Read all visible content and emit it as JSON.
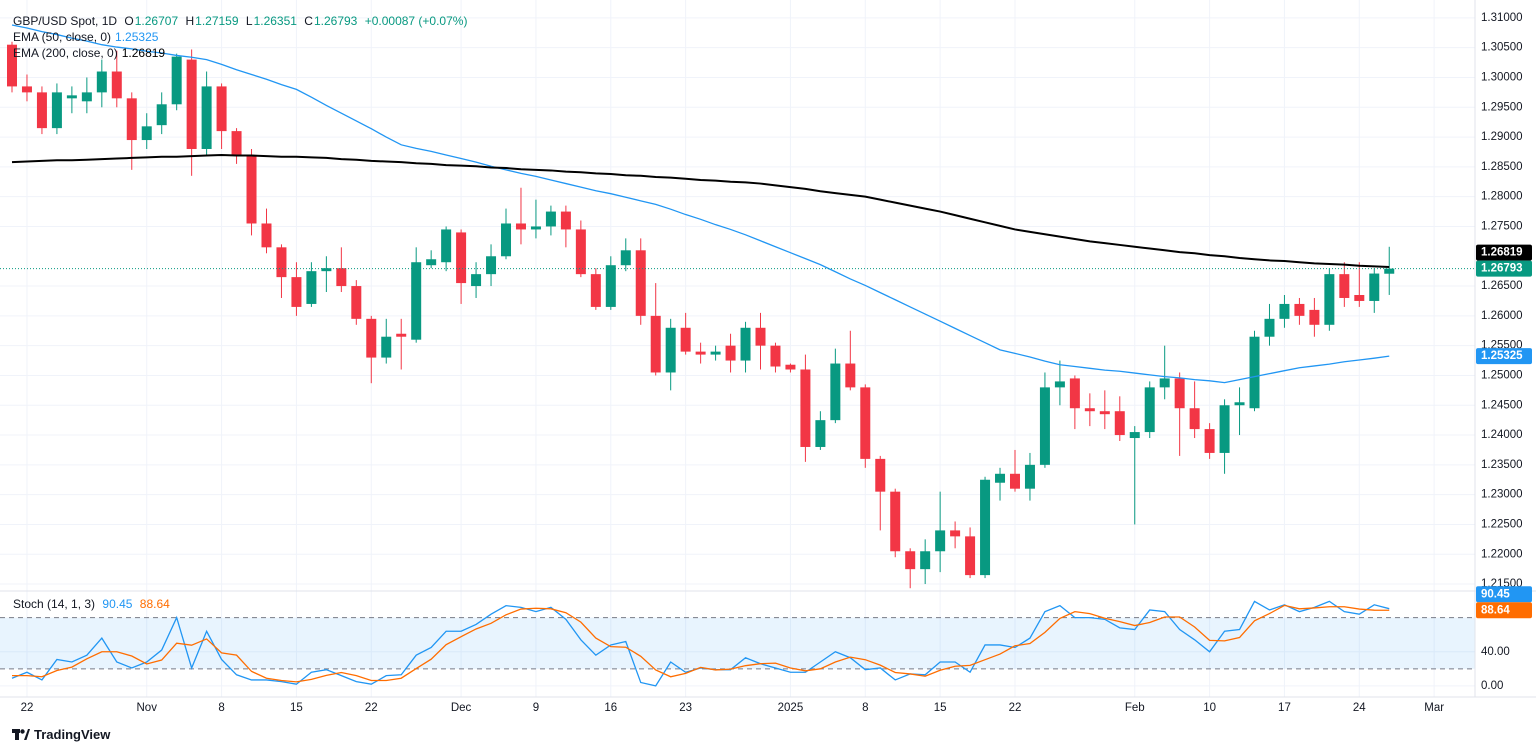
{
  "chart_data": [
    {
      "type": "candlestick",
      "title": "GBP/USD Spot, 1D",
      "ohlc_letters": [
        "O",
        "H",
        "L",
        "C"
      ],
      "change_label": "+0.00087 (+0.07%)",
      "categories": [
        null,
        "22",
        null,
        null,
        null,
        null,
        null,
        null,
        null,
        "Nov",
        null,
        null,
        null,
        null,
        "8",
        null,
        null,
        null,
        null,
        "15",
        null,
        null,
        null,
        null,
        "22",
        null,
        null,
        null,
        null,
        null,
        "Dec",
        null,
        null,
        null,
        null,
        "9",
        null,
        null,
        null,
        null,
        "16",
        null,
        null,
        null,
        null,
        "23",
        null,
        null,
        null,
        null,
        null,
        null,
        "2025",
        null,
        null,
        null,
        null,
        "8",
        null,
        null,
        null,
        null,
        "15",
        null,
        null,
        null,
        null,
        "22",
        null,
        null,
        null,
        null,
        null,
        null,
        null,
        "Feb",
        null,
        null,
        null,
        null,
        "10",
        null,
        null,
        null,
        null,
        "17",
        null,
        null,
        null,
        null,
        "24",
        null,
        null,
        null,
        null,
        "Mar"
      ],
      "open": [
        1.3055,
        1.2985,
        1.2975,
        1.2915,
        1.2965,
        1.296,
        1.2975,
        1.301,
        1.2965,
        1.2895,
        1.292,
        1.2955,
        1.303,
        1.288,
        1.2985,
        1.291,
        1.287,
        1.2755,
        1.2715,
        1.2665,
        1.262,
        1.2675,
        1.268,
        1.265,
        1.2595,
        1.253,
        1.257,
        1.256,
        1.2685,
        1.269,
        1.274,
        1.265,
        1.267,
        1.27,
        1.2755,
        1.2745,
        1.275,
        1.2775,
        1.2745,
        1.267,
        1.2615,
        1.2685,
        1.271,
        1.26,
        1.2505,
        1.258,
        1.254,
        1.2535,
        1.255,
        1.2525,
        1.258,
        1.255,
        1.2518,
        1.251,
        1.238,
        1.2425,
        1.252,
        1.248,
        1.236,
        1.2305,
        1.2205,
        1.2175,
        1.2205,
        1.224,
        1.223,
        1.2165,
        1.232,
        1.2335,
        1.231,
        1.235,
        1.248,
        1.2495,
        1.2445,
        1.244,
        1.244,
        1.2395,
        1.2405,
        1.248,
        1.2495,
        1.2445,
        1.241,
        1.237,
        1.245,
        1.2445,
        1.2565,
        1.2595,
        1.262,
        1.261,
        1.2585,
        1.267,
        1.2635,
        1.2625,
        1.26707,
        null,
        null,
        null
      ],
      "high": [
        1.306,
        1.3005,
        1.2985,
        1.299,
        1.2985,
        1.3,
        1.303,
        1.3045,
        1.2975,
        1.294,
        1.2975,
        1.304,
        1.3047,
        1.301,
        1.299,
        1.2915,
        1.288,
        1.278,
        1.272,
        1.269,
        1.269,
        1.27,
        1.2715,
        1.266,
        1.26,
        1.2595,
        1.2595,
        1.2715,
        1.271,
        1.275,
        1.2745,
        1.269,
        1.272,
        1.278,
        1.2815,
        1.2795,
        1.2785,
        1.2785,
        1.276,
        1.268,
        1.27,
        1.273,
        1.273,
        1.2655,
        1.2595,
        1.2605,
        1.2555,
        1.255,
        1.257,
        1.259,
        1.2605,
        1.2555,
        1.252,
        1.2535,
        1.244,
        1.2545,
        1.2575,
        1.2485,
        1.2365,
        1.231,
        1.221,
        1.2225,
        1.2305,
        1.2255,
        1.2245,
        1.233,
        1.2345,
        1.2375,
        1.237,
        1.2505,
        1.2525,
        1.25,
        1.247,
        1.2475,
        1.2465,
        1.2415,
        1.249,
        1.255,
        1.2505,
        1.249,
        1.242,
        1.246,
        1.248,
        1.2575,
        1.262,
        1.2635,
        1.263,
        1.263,
        1.268,
        1.269,
        1.269,
        1.268,
        1.27159,
        null,
        null,
        null
      ],
      "low": [
        1.2975,
        1.296,
        1.2905,
        1.2905,
        1.294,
        1.294,
        1.295,
        1.295,
        1.2845,
        1.288,
        1.2905,
        1.2945,
        1.2835,
        1.287,
        1.288,
        1.2855,
        1.2735,
        1.2705,
        1.263,
        1.26,
        1.2615,
        1.264,
        1.264,
        1.2585,
        1.2487,
        1.252,
        1.251,
        1.2555,
        1.268,
        1.2675,
        1.262,
        1.263,
        1.265,
        1.2695,
        1.272,
        1.273,
        1.2735,
        1.2715,
        1.2665,
        1.261,
        1.261,
        1.2675,
        1.2585,
        1.25,
        1.2475,
        1.2535,
        1.252,
        1.2525,
        1.2505,
        1.2505,
        1.251,
        1.2505,
        1.2505,
        1.2355,
        1.2375,
        1.242,
        1.2475,
        1.2345,
        1.224,
        1.2195,
        1.2143,
        1.215,
        1.217,
        1.221,
        1.216,
        1.216,
        1.229,
        1.2305,
        1.229,
        1.2345,
        1.245,
        1.241,
        1.2415,
        1.241,
        1.239,
        1.225,
        1.2395,
        1.246,
        1.2365,
        1.2395,
        1.236,
        1.2335,
        1.24,
        1.244,
        1.255,
        1.258,
        1.2585,
        1.2565,
        1.2575,
        1.2615,
        1.2615,
        1.2605,
        1.26351,
        null,
        null,
        null
      ],
      "close": [
        1.2985,
        1.2975,
        1.2915,
        1.2975,
        1.297,
        1.2975,
        1.301,
        1.2965,
        1.2895,
        1.2918,
        1.2955,
        1.3035,
        1.288,
        1.2985,
        1.291,
        1.287,
        1.2755,
        1.2715,
        1.2665,
        1.2615,
        1.2675,
        1.268,
        1.265,
        1.2595,
        1.253,
        1.2565,
        1.2565,
        1.269,
        1.2695,
        1.2745,
        1.2655,
        1.267,
        1.27,
        1.2755,
        1.2745,
        1.275,
        1.2775,
        1.2745,
        1.267,
        1.2615,
        1.2685,
        1.271,
        1.26,
        1.2505,
        1.258,
        1.254,
        1.2535,
        1.254,
        1.2525,
        1.258,
        1.255,
        1.2515,
        1.251,
        1.238,
        1.2425,
        1.252,
        1.248,
        1.236,
        1.2305,
        1.2205,
        1.2175,
        1.2205,
        1.224,
        1.223,
        1.2165,
        1.2325,
        1.2335,
        1.231,
        1.235,
        1.248,
        1.249,
        1.2445,
        1.244,
        1.2435,
        1.24,
        1.2405,
        1.248,
        1.2495,
        1.2445,
        1.241,
        1.237,
        1.245,
        1.2455,
        1.2565,
        1.2595,
        1.262,
        1.26,
        1.2585,
        1.267,
        1.263,
        1.2625,
        1.2671,
        1.26793,
        null,
        null,
        null
      ],
      "up_color": "#089981",
      "down_color": "#f23645",
      "series": [
        {
          "name": "EMA (50, close, 0)",
          "color": "#2196f3",
          "values": [
            1.3088,
            1.3083,
            1.3077,
            1.3072,
            1.3066,
            1.3061,
            1.3055,
            1.3051,
            1.3048,
            1.3044,
            1.3041,
            1.3037,
            1.3034,
            1.303,
            1.3022,
            1.3013,
            1.3005,
            1.2997,
            1.2988,
            1.298,
            1.2967,
            1.2953,
            1.294,
            1.2927,
            1.2914,
            1.29,
            1.2887,
            1.2881,
            1.2876,
            1.287,
            1.2864,
            1.2858,
            1.2851,
            1.2845,
            1.2839,
            1.2834,
            1.2828,
            1.2822,
            1.2816,
            1.281,
            1.2805,
            1.2799,
            1.2793,
            1.2787,
            1.2779,
            1.277,
            1.2762,
            1.2753,
            1.2745,
            1.2736,
            1.2726,
            1.2716,
            1.2706,
            1.2696,
            1.2686,
            1.2674,
            1.2662,
            1.2651,
            1.2639,
            1.2627,
            1.2615,
            1.2603,
            1.2591,
            1.2579,
            1.2567,
            1.2555,
            1.2543,
            1.2537,
            1.2531,
            1.2524,
            1.2518,
            1.2515,
            1.2512,
            1.2509,
            1.2507,
            1.2504,
            1.2501,
            1.2498,
            1.2496,
            1.2493,
            1.2491,
            1.2488,
            1.2493,
            1.2498,
            1.2503,
            1.2508,
            1.2513,
            1.2516,
            1.2519,
            1.2523,
            1.2526,
            1.2529,
            1.25325,
            null,
            null,
            null
          ]
        },
        {
          "name": "EMA (200, close, 0)",
          "color": "#000000",
          "values": [
            1.2858,
            1.2859,
            1.286,
            1.2861,
            1.2861,
            1.2862,
            1.2863,
            1.2864,
            1.2865,
            1.2866,
            1.2867,
            1.2867,
            1.2868,
            1.2869,
            1.287,
            1.2869,
            1.2869,
            1.2868,
            1.2867,
            1.2867,
            1.2866,
            1.2865,
            1.2863,
            1.2862,
            1.286,
            1.2859,
            1.2858,
            1.2856,
            1.2855,
            1.2853,
            1.2852,
            1.2851,
            1.2849,
            1.2848,
            1.2846,
            1.2845,
            1.2844,
            1.2842,
            1.2841,
            1.2839,
            1.2838,
            1.2836,
            1.2835,
            1.2833,
            1.2832,
            1.283,
            1.2828,
            1.2827,
            1.2825,
            1.2824,
            1.2822,
            1.2819,
            1.2816,
            1.2813,
            1.2809,
            1.2806,
            1.2803,
            1.28,
            1.2795,
            1.279,
            1.2785,
            1.278,
            1.2775,
            1.2769,
            1.2763,
            1.2757,
            1.2751,
            1.2745,
            1.2741,
            1.2737,
            1.2733,
            1.2729,
            1.2725,
            1.2722,
            1.2719,
            1.2716,
            1.2713,
            1.271,
            1.2707,
            1.2705,
            1.2702,
            1.27,
            1.2697,
            1.2695,
            1.2693,
            1.2692,
            1.269,
            1.2688,
            1.2687,
            1.2686,
            1.2684,
            1.2683,
            1.26819,
            null,
            null,
            null
          ]
        }
      ],
      "ylim": [
        1.214,
        1.313
      ],
      "yticks": [
        {
          "value": 1.31,
          "label": "1.31000"
        },
        {
          "value": 1.305,
          "label": "1.30500"
        },
        {
          "value": 1.3,
          "label": "1.30000"
        },
        {
          "value": 1.295,
          "label": "1.29500"
        },
        {
          "value": 1.29,
          "label": "1.29000"
        },
        {
          "value": 1.285,
          "label": "1.28500"
        },
        {
          "value": 1.28,
          "label": "1.28000"
        },
        {
          "value": 1.275,
          "label": "1.27500"
        },
        {
          "value": 1.265,
          "label": "1.26500"
        },
        {
          "value": 1.26,
          "label": "1.26000"
        },
        {
          "value": 1.255,
          "label": "1.25500"
        },
        {
          "value": 1.25,
          "label": "1.25000"
        },
        {
          "value": 1.245,
          "label": "1.24500"
        },
        {
          "value": 1.24,
          "label": "1.24000"
        },
        {
          "value": 1.235,
          "label": "1.23500"
        },
        {
          "value": 1.23,
          "label": "1.23000"
        },
        {
          "value": 1.225,
          "label": "1.22500"
        },
        {
          "value": 1.22,
          "label": "1.22000"
        },
        {
          "value": 1.215,
          "label": "1.21500"
        }
      ],
      "grid": true
    },
    {
      "type": "line",
      "title": "Stoch (14, 1, 3)",
      "series": [
        {
          "color": "#2196f3",
          "values": [
            9,
            16,
            7,
            31,
            28,
            36,
            56,
            28,
            21,
            28,
            42,
            80,
            21,
            64,
            31,
            13,
            7,
            7,
            5,
            2,
            16,
            19,
            12,
            5,
            2,
            12,
            13,
            36,
            45,
            64,
            64,
            72,
            84,
            94,
            92,
            87,
            92,
            78,
            54,
            36,
            48,
            52,
            4,
            0,
            28,
            16,
            21,
            19,
            19,
            33,
            26,
            21,
            16,
            16,
            28,
            40,
            33,
            19,
            21,
            7,
            14,
            13,
            28,
            28,
            16,
            48,
            48,
            45,
            56,
            87,
            94,
            80,
            80,
            78,
            68,
            66,
            89,
            87,
            66,
            54,
            40,
            64,
            66,
            99,
            89,
            95,
            87,
            92,
            99,
            87,
            84,
            95,
            90.45,
            null,
            null,
            null
          ]
        },
        {
          "color": "#ff6d00",
          "values": [
            12,
            12,
            10.7,
            18,
            22,
            31.7,
            40,
            40,
            35,
            25.7,
            30.3,
            50,
            47.7,
            55,
            38.7,
            36,
            17,
            9,
            6.3,
            4.7,
            7.7,
            12.3,
            15.7,
            12,
            6.3,
            6.3,
            9,
            20.3,
            31.3,
            48.3,
            57.7,
            66.7,
            73.3,
            83.3,
            90,
            91,
            90.3,
            85.7,
            74.7,
            56,
            46,
            45.3,
            34.7,
            18.7,
            10.7,
            14.7,
            21.7,
            18.7,
            19.7,
            23.7,
            26,
            26.7,
            21,
            17.7,
            20,
            28,
            33.7,
            30.7,
            24.3,
            15.7,
            14,
            11.3,
            18.3,
            23,
            24,
            30.7,
            37.3,
            47,
            49.7,
            62.7,
            79,
            87,
            84.7,
            79.3,
            75.3,
            70.7,
            74.3,
            80.7,
            80.7,
            69,
            53.3,
            52.7,
            56.7,
            76.3,
            84.7,
            94.3,
            90.3,
            91.3,
            92.7,
            92.7,
            90,
            88.7,
            88.64,
            null,
            null,
            null
          ]
        }
      ],
      "ylim": [
        -13,
        110
      ],
      "yticks": [
        {
          "value": 40,
          "label": "40.00"
        },
        {
          "value": 0,
          "label": "0.00"
        }
      ],
      "levels": [
        20,
        80
      ],
      "band_color": "#2196f3"
    }
  ],
  "brand": "TradingView"
}
